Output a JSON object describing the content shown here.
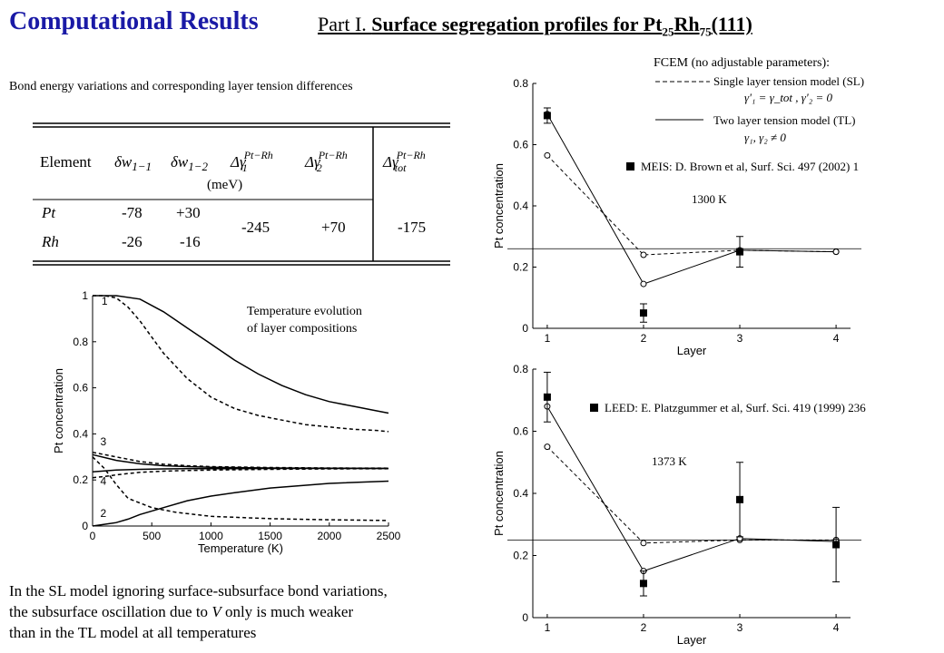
{
  "header": {
    "title": "Computational Results",
    "part_prefix": "Part I. ",
    "part_bold": "Surface segregation profiles for Pt",
    "sub1": "25",
    "mid": "Rh",
    "sub2": "75",
    "tail": "(111)"
  },
  "table_section": {
    "caption": "Bond energy variations and corresponding layer tension differences",
    "header_element": "Element",
    "header_dw1": "δw",
    "header_dw1_sub": "1−1",
    "header_dw2": "δw",
    "header_dw2_sub": "1−2",
    "header_g1": "Δγ",
    "header_g1_sub": "1",
    "header_g2": "Δγ",
    "header_g2_sub": "2",
    "header_gtot": "Δγ",
    "header_gtot_sub": "tot",
    "header_sup": "Pt−Rh",
    "unit": "(meV)",
    "rows": [
      {
        "element": "Pt",
        "dw1": "-78",
        "dw2": "+30"
      },
      {
        "element": "Rh",
        "dw1": "-26",
        "dw2": "-16"
      }
    ],
    "merged": {
      "g1": "-245",
      "g2": "+70",
      "gtot": "-175"
    }
  },
  "left_chart_label": {
    "line1": "Temperature evolution",
    "line2": "of layer compositions"
  },
  "legend": {
    "title": "FCEM (no adjustable parameters):",
    "sl_label": "Single layer tension model (SL)",
    "sl_formula": "γ'₁ = γ_tot , γ'₂ = 0",
    "tl_label": "Two layer tension model (TL)",
    "tl_formula": "γ₁, γ₂ ≠ 0",
    "meis": "MEIS: D. Brown et al, Surf. Sci. 497 (2002) 1",
    "temp_meis": "1300 K",
    "leed": "LEED: E. Platzgummer et al, Surf. Sci. 419 (1999) 236",
    "temp_leed": "1373 K"
  },
  "bottom_text": {
    "line1": "In the SL model ignoring  surface-subsurface bond variations,",
    "line2": "the subsurface oscillation due to V only is much weaker",
    "line2_a": "the subsurface oscillation due to ",
    "line2_v": "V",
    "line2_b": " only is much weaker",
    "line3": "than in the TL model at all temperatures"
  },
  "chart_data": [
    {
      "type": "line",
      "xlabel": "Temperature (K)",
      "ylabel": "Pt concentration",
      "xlim": [
        0,
        2500
      ],
      "ylim": [
        0,
        1
      ],
      "xticks": [
        0,
        500,
        1000,
        1500,
        2000,
        2500
      ],
      "yticks": [
        0,
        0.2,
        0.4,
        0.6,
        0.8,
        1
      ],
      "ytick_labels": [
        "0",
        "0.2",
        "0.4",
        "0.6",
        "0.8",
        "1"
      ],
      "curve_labels": [
        {
          "text": "1",
          "x": 60,
          "y": 0.96
        },
        {
          "text": "3",
          "x": 50,
          "y": 0.35
        },
        {
          "text": "4",
          "x": 50,
          "y": 0.18
        },
        {
          "text": "2",
          "x": 50,
          "y": 0.04
        }
      ],
      "series": [
        {
          "style": "solid",
          "x": [
            0,
            200,
            400,
            600,
            800,
            1000,
            1200,
            1400,
            1600,
            1800,
            2000,
            2200,
            2400,
            2500
          ],
          "y": [
            1,
            1,
            0.985,
            0.93,
            0.86,
            0.79,
            0.72,
            0.66,
            0.61,
            0.57,
            0.54,
            0.52,
            0.5,
            0.49
          ]
        },
        {
          "style": "dashed",
          "x": [
            0,
            100,
            200,
            300,
            400,
            500,
            600,
            800,
            1000,
            1200,
            1400,
            1600,
            1800,
            2000,
            2200,
            2400,
            2500
          ],
          "y": [
            1,
            1,
            0.99,
            0.95,
            0.89,
            0.82,
            0.75,
            0.64,
            0.56,
            0.51,
            0.48,
            0.46,
            0.44,
            0.43,
            0.42,
            0.415,
            0.41
          ]
        },
        {
          "style": "solid",
          "x": [
            0,
            200,
            400,
            600,
            800,
            1000,
            1500,
            2000,
            2500
          ],
          "y": [
            0.31,
            0.285,
            0.27,
            0.262,
            0.258,
            0.255,
            0.252,
            0.251,
            0.25
          ]
        },
        {
          "style": "dashed",
          "x": [
            0,
            200,
            400,
            600,
            800,
            1000,
            1500,
            2000,
            2500
          ],
          "y": [
            0.32,
            0.3,
            0.28,
            0.268,
            0.262,
            0.258,
            0.254,
            0.252,
            0.251
          ]
        },
        {
          "style": "solid",
          "x": [
            0,
            200,
            400,
            600,
            800,
            1000,
            1500,
            2000,
            2500
          ],
          "y": [
            0.235,
            0.243,
            0.246,
            0.248,
            0.249,
            0.249,
            0.25,
            0.25,
            0.25
          ]
        },
        {
          "style": "dashed",
          "x": [
            0,
            100,
            200,
            300,
            400,
            600,
            800,
            1000,
            1500,
            2000,
            2500
          ],
          "y": [
            0.21,
            0.215,
            0.222,
            0.228,
            0.233,
            0.238,
            0.241,
            0.243,
            0.246,
            0.248,
            0.249
          ]
        },
        {
          "style": "dashed",
          "x": [
            0,
            100,
            200,
            300,
            500,
            700,
            1000,
            1500,
            2000,
            2500
          ],
          "y": [
            0.3,
            0.25,
            0.18,
            0.12,
            0.08,
            0.06,
            0.042,
            0.032,
            0.027,
            0.024
          ]
        },
        {
          "style": "solid",
          "x": [
            0,
            200,
            300,
            400,
            600,
            800,
            1000,
            1200,
            1500,
            2000,
            2500
          ],
          "y": [
            0.0,
            0.015,
            0.03,
            0.05,
            0.08,
            0.11,
            0.13,
            0.145,
            0.165,
            0.185,
            0.195
          ]
        }
      ]
    },
    {
      "type": "line",
      "xlabel": "Layer",
      "ylabel": "Pt concentration",
      "xlim": [
        0.85,
        4.15
      ],
      "ylim": [
        0,
        0.8
      ],
      "xticks": [
        1,
        2,
        3,
        4
      ],
      "yticks": [
        0,
        0.2,
        0.4,
        0.6,
        0.8
      ],
      "ytick_labels": [
        "0",
        "0.2",
        "0.4",
        "0.6",
        "0.8"
      ],
      "reference_y": 0.26,
      "series": [
        {
          "name": "SL",
          "style": "dashed",
          "x": [
            1,
            2,
            3,
            4
          ],
          "y": [
            0.565,
            0.24,
            0.255,
            0.25
          ]
        },
        {
          "name": "TL",
          "style": "solid",
          "x": [
            1,
            2,
            3,
            4
          ],
          "y": [
            0.7,
            0.145,
            0.255,
            0.25
          ]
        },
        {
          "name": "MEIS",
          "style": "markers",
          "x": [
            1,
            2,
            3
          ],
          "y": [
            0.695,
            0.05,
            0.25
          ],
          "err": [
            0.025,
            0.03,
            0.05
          ]
        }
      ]
    },
    {
      "type": "line",
      "xlabel": "Layer",
      "ylabel": "Pt concentration",
      "xlim": [
        0.85,
        4.15
      ],
      "ylim": [
        0,
        0.8
      ],
      "xticks": [
        1,
        2,
        3,
        4
      ],
      "yticks": [
        0,
        0.2,
        0.4,
        0.6,
        0.8
      ],
      "ytick_labels": [
        "0",
        "0.2",
        "0.4",
        "0.6",
        "0.8"
      ],
      "reference_y": 0.25,
      "series": [
        {
          "name": "SL",
          "style": "dashed",
          "x": [
            1,
            2,
            3,
            4
          ],
          "y": [
            0.55,
            0.24,
            0.25,
            0.25
          ]
        },
        {
          "name": "TL",
          "style": "solid",
          "x": [
            1,
            2,
            3,
            4
          ],
          "y": [
            0.68,
            0.15,
            0.255,
            0.245
          ]
        },
        {
          "name": "LEED",
          "style": "markers",
          "x": [
            1,
            2,
            3,
            4
          ],
          "y": [
            0.71,
            0.11,
            0.38,
            0.235
          ],
          "err": [
            0.08,
            0.04,
            0.12,
            0.12
          ]
        }
      ]
    }
  ]
}
